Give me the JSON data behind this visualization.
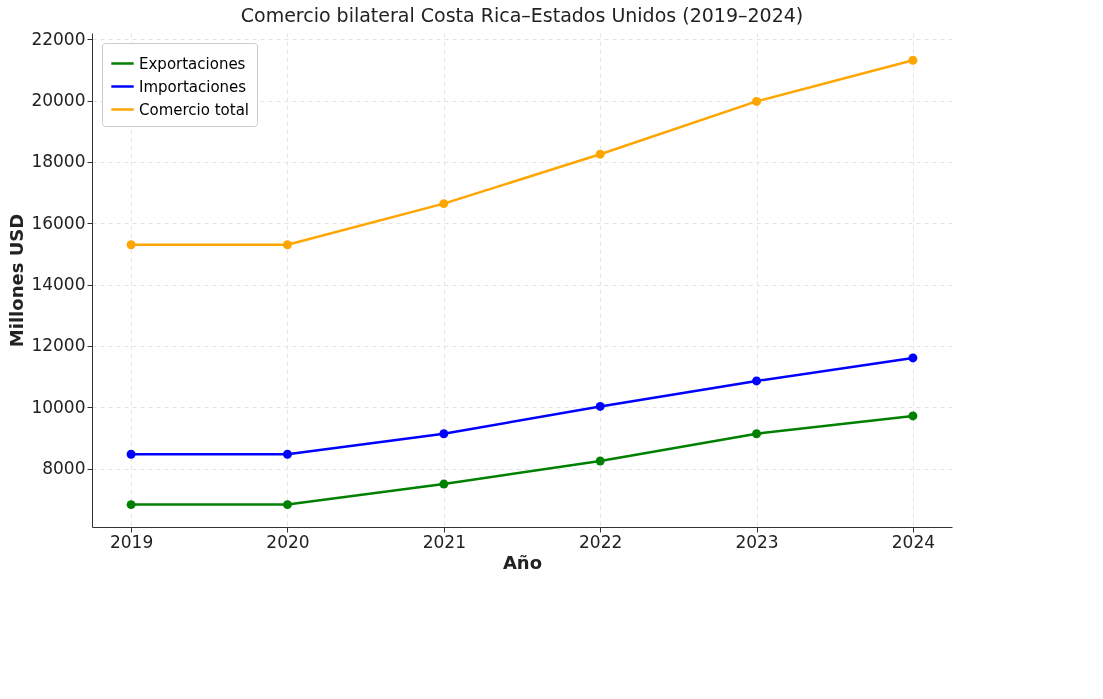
{
  "chart_data": {
    "type": "line",
    "title": "Comercio bilateral Costa Rica–Estados Unidos (2019–2024)",
    "xlabel": "Año",
    "ylabel": "Millones USD",
    "x": [
      2019,
      2020,
      2021,
      2022,
      2023,
      2024
    ],
    "series": [
      {
        "name": "Exportaciones",
        "color": "#008000",
        "values": [
          6830,
          6830,
          7500,
          8250,
          9140,
          9720
        ]
      },
      {
        "name": "Importaciones",
        "color": "#0000ff",
        "values": [
          8470,
          8470,
          9140,
          10030,
          10860,
          11610
        ]
      },
      {
        "name": "Comercio total",
        "color": "#ffa500",
        "values": [
          15300,
          15300,
          16640,
          18250,
          19970,
          21310
        ]
      }
    ],
    "xlim": [
      2018.75,
      2024.25
    ],
    "xticks": [
      2019,
      2020,
      2021,
      2022,
      2023,
      2024
    ],
    "ylim": [
      6100,
      22200
    ],
    "yticks": [
      8000,
      10000,
      12000,
      14000,
      16000,
      18000,
      20000,
      22000
    ],
    "grid": true,
    "legend": "top left",
    "marker": "circle",
    "line_style": "solid"
  }
}
